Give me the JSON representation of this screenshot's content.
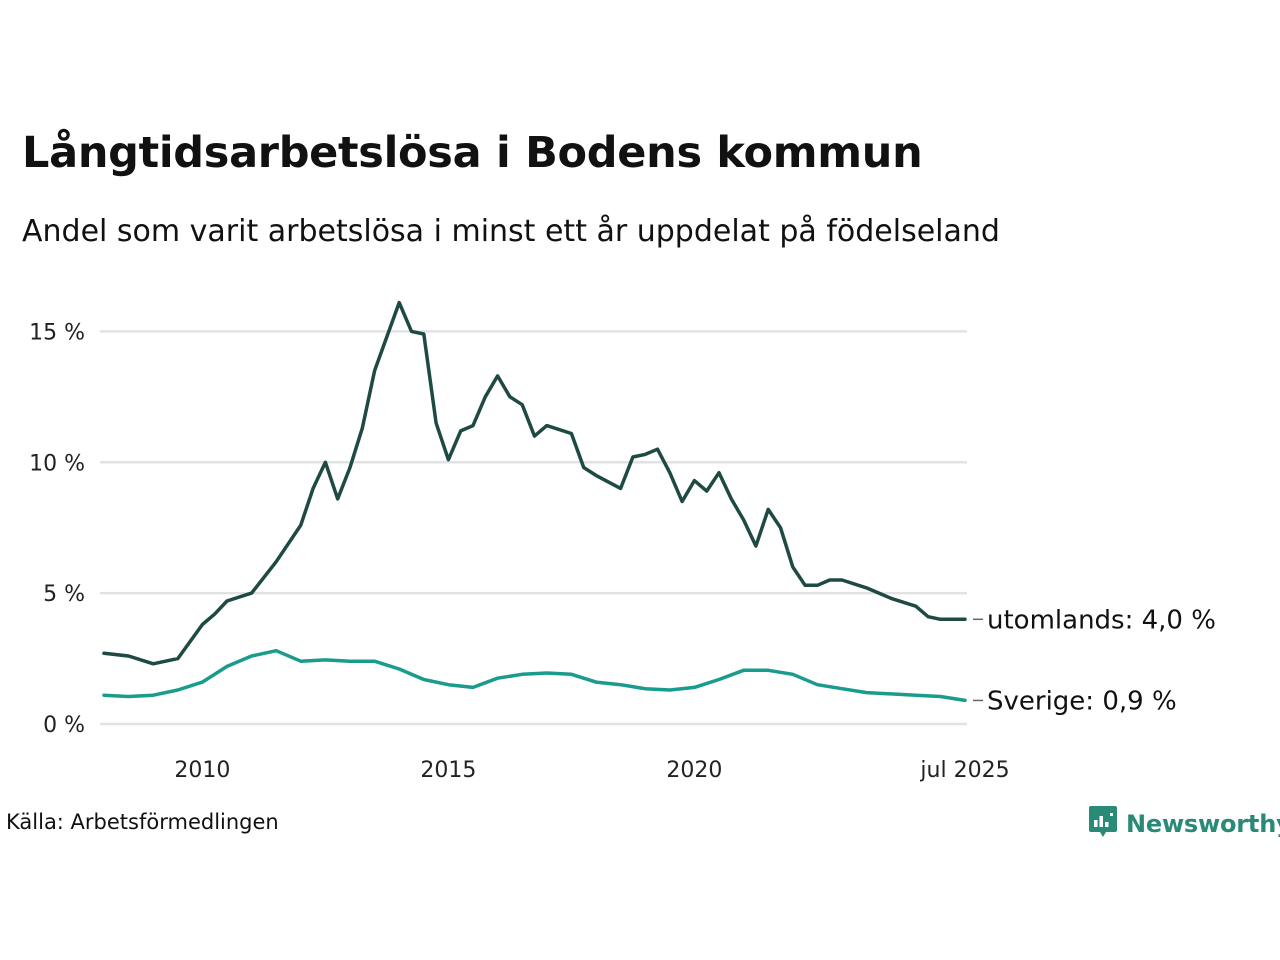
{
  "title": "Långtidsarbetslösa i Bodens kommun",
  "subtitle": "Andel som varit arbetslösa i minst ett år uppdelat på födelseland",
  "source": "Källa: Arbetsförmedlingen",
  "logo": {
    "name": "Newsworthy",
    "icon": "newsworthy-logo-icon",
    "color": "#2a8a78"
  },
  "colors": {
    "utomlands": "#1f4a44",
    "sverige": "#1a9c8c",
    "grid": "#e2e2e2"
  },
  "chart_data": {
    "type": "line",
    "x_start": "2008-01",
    "x_end": "2025-07",
    "x_ticks": [
      {
        "date": "2010-01",
        "label": "2010"
      },
      {
        "date": "2015-01",
        "label": "2015"
      },
      {
        "date": "2020-01",
        "label": "2020"
      },
      {
        "date": "2025-07",
        "label": "jul 2025"
      }
    ],
    "y_ticks": [
      {
        "value": 0,
        "label": "0 %"
      },
      {
        "value": 5,
        "label": "5 %"
      },
      {
        "value": 10,
        "label": "10 %"
      },
      {
        "value": 15,
        "label": "15 %"
      }
    ],
    "ylim": [
      0,
      16.2
    ],
    "grid": true,
    "series": [
      {
        "key": "utomlands",
        "end_label": "utomlands: 4,0 %",
        "color": "#1f4a44",
        "points": [
          [
            "2008-01",
            2.7
          ],
          [
            "2008-07",
            2.6
          ],
          [
            "2009-01",
            2.3
          ],
          [
            "2009-07",
            2.5
          ],
          [
            "2010-01",
            3.8
          ],
          [
            "2010-04",
            4.2
          ],
          [
            "2010-07",
            4.7
          ],
          [
            "2011-01",
            5.0
          ],
          [
            "2011-07",
            6.2
          ],
          [
            "2012-01",
            7.6
          ],
          [
            "2012-04",
            9.0
          ],
          [
            "2012-07",
            10.0
          ],
          [
            "2012-10",
            8.6
          ],
          [
            "2013-01",
            9.8
          ],
          [
            "2013-04",
            11.3
          ],
          [
            "2013-07",
            13.5
          ],
          [
            "2013-10",
            14.8
          ],
          [
            "2014-01",
            16.1
          ],
          [
            "2014-04",
            15.0
          ],
          [
            "2014-07",
            14.9
          ],
          [
            "2014-10",
            11.5
          ],
          [
            "2015-01",
            10.1
          ],
          [
            "2015-04",
            11.2
          ],
          [
            "2015-07",
            11.4
          ],
          [
            "2015-10",
            12.5
          ],
          [
            "2016-01",
            13.3
          ],
          [
            "2016-04",
            12.5
          ],
          [
            "2016-07",
            12.2
          ],
          [
            "2016-10",
            11.0
          ],
          [
            "2017-01",
            11.4
          ],
          [
            "2017-07",
            11.1
          ],
          [
            "2017-10",
            9.8
          ],
          [
            "2018-01",
            9.5
          ],
          [
            "2018-07",
            9.0
          ],
          [
            "2018-10",
            10.2
          ],
          [
            "2019-01",
            10.3
          ],
          [
            "2019-04",
            10.5
          ],
          [
            "2019-07",
            9.6
          ],
          [
            "2019-10",
            8.5
          ],
          [
            "2020-01",
            9.3
          ],
          [
            "2020-04",
            8.9
          ],
          [
            "2020-07",
            9.6
          ],
          [
            "2020-10",
            8.6
          ],
          [
            "2021-01",
            7.8
          ],
          [
            "2021-04",
            6.8
          ],
          [
            "2021-07",
            8.2
          ],
          [
            "2021-10",
            7.5
          ],
          [
            "2022-01",
            6.0
          ],
          [
            "2022-04",
            5.3
          ],
          [
            "2022-07",
            5.3
          ],
          [
            "2022-10",
            5.5
          ],
          [
            "2023-01",
            5.5
          ],
          [
            "2023-07",
            5.2
          ],
          [
            "2023-10",
            5.0
          ],
          [
            "2024-01",
            4.8
          ],
          [
            "2024-07",
            4.5
          ],
          [
            "2024-10",
            4.1
          ],
          [
            "2025-01",
            4.0
          ],
          [
            "2025-07",
            4.0
          ]
        ]
      },
      {
        "key": "sverige",
        "end_label": "Sverige: 0,9 %",
        "color": "#1a9c8c",
        "points": [
          [
            "2008-01",
            1.1
          ],
          [
            "2008-07",
            1.05
          ],
          [
            "2009-01",
            1.1
          ],
          [
            "2009-07",
            1.3
          ],
          [
            "2010-01",
            1.6
          ],
          [
            "2010-07",
            2.2
          ],
          [
            "2011-01",
            2.6
          ],
          [
            "2011-07",
            2.8
          ],
          [
            "2012-01",
            2.4
          ],
          [
            "2012-07",
            2.45
          ],
          [
            "2013-01",
            2.4
          ],
          [
            "2013-07",
            2.4
          ],
          [
            "2014-01",
            2.1
          ],
          [
            "2014-07",
            1.7
          ],
          [
            "2015-01",
            1.5
          ],
          [
            "2015-07",
            1.4
          ],
          [
            "2016-01",
            1.75
          ],
          [
            "2016-07",
            1.9
          ],
          [
            "2017-01",
            1.95
          ],
          [
            "2017-07",
            1.9
          ],
          [
            "2018-01",
            1.6
          ],
          [
            "2018-07",
            1.5
          ],
          [
            "2019-01",
            1.35
          ],
          [
            "2019-07",
            1.3
          ],
          [
            "2020-01",
            1.4
          ],
          [
            "2020-07",
            1.7
          ],
          [
            "2021-01",
            2.05
          ],
          [
            "2021-07",
            2.05
          ],
          [
            "2022-01",
            1.9
          ],
          [
            "2022-07",
            1.5
          ],
          [
            "2023-01",
            1.35
          ],
          [
            "2023-07",
            1.2
          ],
          [
            "2024-01",
            1.15
          ],
          [
            "2024-07",
            1.1
          ],
          [
            "2025-01",
            1.05
          ],
          [
            "2025-07",
            0.9
          ]
        ]
      }
    ]
  }
}
